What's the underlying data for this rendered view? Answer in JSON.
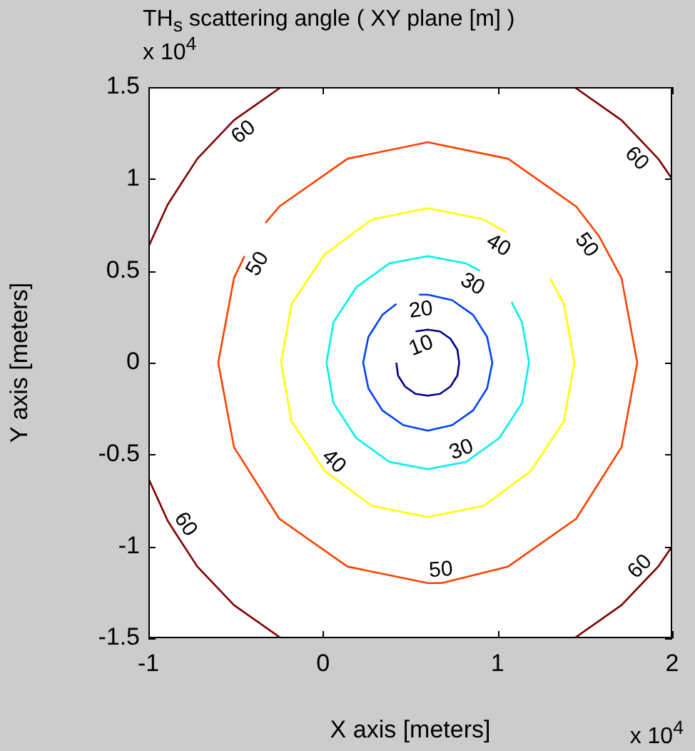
{
  "chart_data": {
    "type": "line",
    "title": "TH$_{s}$ scattering angle ( XY plane [m] )",
    "xlabel": "X axis [meters]",
    "ylabel": "Y axis [meters]",
    "xlim": [
      -1,
      2
    ],
    "xticks": [
      -1,
      0,
      1,
      2
    ],
    "ylim": [
      -1.5,
      1.5
    ],
    "yticks": [
      -1.5,
      -1,
      -0.5,
      0,
      0.5,
      1,
      1.5
    ],
    "marker": "none",
    "line_style": "solid",
    "legend": false,
    "series": [
      {
        "color": "#00008f",
        "x": [
          0.53,
          0.6,
          0.67,
          0.73,
          0.77,
          0.78,
          0.77,
          0.73,
          0.67,
          0.6,
          0.53,
          0.47,
          0.43,
          0.42
        ],
        "values": [
          0.17,
          0.18,
          0.17,
          0.13,
          0.07,
          0,
          -0.07,
          -0.13,
          -0.17,
          -0.18,
          -0.17,
          -0.13,
          -0.07,
          0
        ]
      },
      {
        "color": "#0040ff",
        "x": [
          0.55,
          0.6,
          0.74,
          0.86,
          0.94,
          0.97,
          0.94,
          0.86,
          0.74,
          0.6,
          0.46,
          0.34,
          0.26,
          0.23,
          0.26,
          0.34,
          0.42
        ],
        "values": [
          0.37,
          0.37,
          0.34,
          0.26,
          0.14,
          0,
          -0.14,
          -0.26,
          -0.34,
          -0.37,
          -0.34,
          -0.26,
          -0.14,
          0,
          0.14,
          0.26,
          0.32
        ]
      },
      {
        "color": "#00f0f0",
        "x": [
          1.08,
          1.14,
          1.18,
          1.14,
          1.01,
          0.82,
          0.6,
          0.38,
          0.19,
          0.06,
          0.02,
          0.06,
          0.19,
          0.38,
          0.6,
          0.82,
          0.9
        ],
        "values": [
          0.33,
          0.22,
          0,
          -0.22,
          -0.41,
          -0.54,
          -0.58,
          -0.54,
          -0.41,
          -0.22,
          0,
          0.22,
          0.41,
          0.54,
          0.58,
          0.54,
          0.5
        ]
      },
      {
        "color": "#ffff00",
        "x": [
          1.3,
          1.38,
          1.44,
          1.38,
          1.19,
          0.92,
          0.6,
          0.28,
          0.01,
          -0.18,
          -0.24,
          -0.18,
          0.01,
          0.28,
          0.6,
          0.92,
          1.05
        ],
        "values": [
          0.46,
          0.32,
          0,
          -0.32,
          -0.59,
          -0.78,
          -0.84,
          -0.78,
          -0.59,
          -0.32,
          0,
          0.32,
          0.59,
          0.78,
          0.84,
          0.78,
          0.71
        ]
      },
      {
        "color": "#ff4000",
        "x": [
          -0.33,
          -0.25,
          0.14,
          0.6,
          1.06,
          1.45,
          1.58,
          1.71,
          1.8,
          1.71,
          1.45,
          1.06,
          0.68,
          0.6,
          0.14,
          -0.25,
          -0.51,
          -0.6,
          -0.51,
          -0.45
        ],
        "values": [
          0.76,
          0.85,
          1.11,
          1.2,
          1.11,
          0.85,
          0.69,
          0.46,
          0,
          -0.46,
          -0.85,
          -1.11,
          -1.2,
          -1.2,
          -1.11,
          -0.85,
          -0.46,
          0,
          0.46,
          0.58
        ]
      },
      {
        "color": "#800000",
        "x": [
          -1,
          -0.89,
          -0.72,
          -0.51,
          -0.24
        ],
        "values": [
          0.63,
          0.86,
          1.11,
          1.32,
          1.5
        ]
      },
      {
        "color": "#800000",
        "x": [
          1.44,
          1.71,
          1.86,
          1.92,
          2
        ],
        "values": [
          1.5,
          1.32,
          1.17,
          1.11,
          1.0
        ]
      },
      {
        "color": "#800000",
        "x": [
          -1,
          -0.89,
          -0.85,
          -0.72,
          -0.51,
          -0.24
        ],
        "values": [
          -0.63,
          -0.86,
          -0.92,
          -1.11,
          -1.32,
          -1.5
        ]
      },
      {
        "color": "#800000",
        "x": [
          1.44,
          1.71,
          1.87,
          1.92,
          2
        ],
        "values": [
          -1.5,
          -1.32,
          -1.16,
          -1.11,
          -1.0
        ]
      }
    ],
    "annotations": [
      "x 10$^{4}$",
      "x 10$^{4}$",
      {
        "text": "60",
        "x": -0.51,
        "y": 1.32
      },
      {
        "text": "60",
        "x": 1.86,
        "y": 1.17
      },
      {
        "text": "60",
        "x": -0.85,
        "y": -0.92
      },
      {
        "text": "60",
        "x": 1.87,
        "y": -1.16
      },
      {
        "text": "50",
        "x": -0.45,
        "y": 0.58
      },
      {
        "text": "50",
        "x": 1.58,
        "y": 0.69
      },
      {
        "text": "50",
        "x": 0.68,
        "y": -1.2
      },
      {
        "text": "40",
        "x": 1.05,
        "y": 0.71
      },
      {
        "text": "40",
        "x": 0.01,
        "y": -0.59
      },
      {
        "text": "30",
        "x": 0.9,
        "y": 0.5
      },
      {
        "text": "30",
        "x": 0.82,
        "y": -0.54
      },
      {
        "text": "20",
        "x": 0.55,
        "y": 0.37
      },
      {
        "text": "10",
        "x": 0.53,
        "y": 0.17
      }
    ]
  }
}
